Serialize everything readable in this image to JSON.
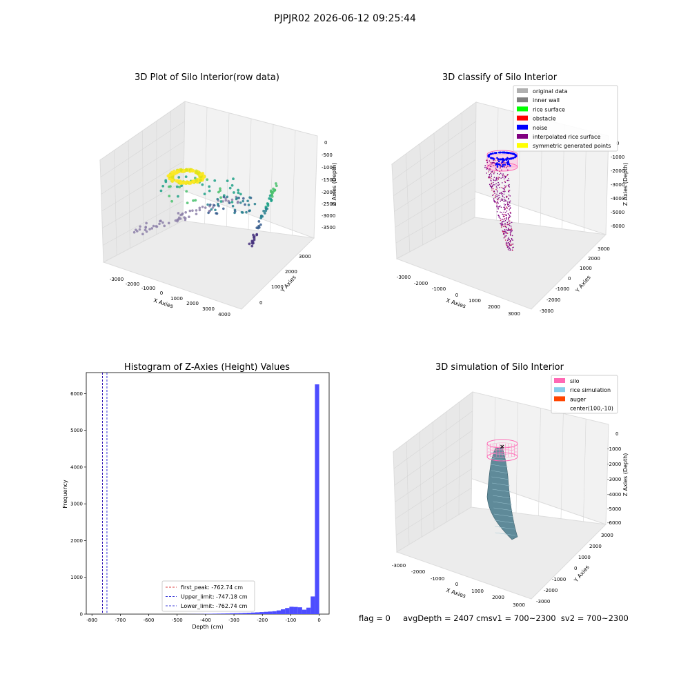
{
  "suptitle": "PJPJR02 2026-06-12 09:25:44",
  "chart_data": [
    {
      "type": "scatter",
      "title": "3D Plot of Silo Interior(row data)",
      "xlabel": "X Axies",
      "ylabel": "Y Axies",
      "zlabel": "Z Axies (Depth)",
      "xticks": [
        "-3000",
        "-2000",
        "-1000",
        "0",
        "1000",
        "2000",
        "3000",
        "4000"
      ],
      "yticks": [
        "0",
        "1000",
        "2000",
        "3000"
      ],
      "zticks": [
        "0",
        "-500",
        "-1000",
        "-1500",
        "-2000",
        "-2500",
        "-3000",
        "-3500"
      ],
      "xlim": [
        -3500,
        4500
      ],
      "ylim": [
        -500,
        3500
      ],
      "zlim": [
        -3800,
        100
      ],
      "colormap": "viridis (depth)",
      "grid": true
    },
    {
      "type": "scatter",
      "title": "3D classify of Silo Interior",
      "xlabel": "X Axies",
      "ylabel": "Y Axies",
      "zlabel": "Z Axies (Depth)",
      "xticks": [
        "-3000",
        "-2000",
        "-1000",
        "0",
        "1000",
        "2000",
        "3000"
      ],
      "yticks": [
        "-3000",
        "-2000",
        "-1000",
        "0",
        "1000",
        "2000",
        "3000"
      ],
      "zticks": [
        "0",
        "-1000",
        "-2000",
        "-3000",
        "-4000",
        "-5000",
        "-6000"
      ],
      "legend": [
        {
          "label": "original data",
          "color": "#b0b0b0"
        },
        {
          "label": "inner wall",
          "color": "#808080"
        },
        {
          "label": "rice surface",
          "color": "#00ff00"
        },
        {
          "label": "obstacle",
          "color": "#ff0000"
        },
        {
          "label": "noise",
          "color": "#0000ff"
        },
        {
          "label": "interpolated rice surface",
          "color": "#800080"
        },
        {
          "label": "symmetric generated points",
          "color": "#ffff00"
        }
      ],
      "legend_position": "top-right",
      "grid": true
    },
    {
      "type": "bar",
      "title": "Histogram of Z-Axies (Height) Values",
      "xlabel": "Depth (cm)",
      "ylabel": "Frequency",
      "xlim": [
        -820,
        35
      ],
      "ylim": [
        0,
        6570
      ],
      "xticks": [
        "-800",
        "-700",
        "-600",
        "-500",
        "-400",
        "-300",
        "-200",
        "-100",
        "0"
      ],
      "yticks": [
        "0",
        "1000",
        "2000",
        "3000",
        "4000",
        "5000",
        "6000"
      ],
      "bin_width": 15,
      "bins": [
        {
          "x0": -465,
          "v": 2
        },
        {
          "x0": -450,
          "v": 3
        },
        {
          "x0": -435,
          "v": 4
        },
        {
          "x0": -420,
          "v": 5
        },
        {
          "x0": -405,
          "v": 8
        },
        {
          "x0": -390,
          "v": 10
        },
        {
          "x0": -375,
          "v": 12
        },
        {
          "x0": -360,
          "v": 14
        },
        {
          "x0": -345,
          "v": 16
        },
        {
          "x0": -330,
          "v": 18
        },
        {
          "x0": -315,
          "v": 22
        },
        {
          "x0": -300,
          "v": 25
        },
        {
          "x0": -285,
          "v": 28
        },
        {
          "x0": -270,
          "v": 32
        },
        {
          "x0": -255,
          "v": 36
        },
        {
          "x0": -240,
          "v": 42
        },
        {
          "x0": -225,
          "v": 48
        },
        {
          "x0": -210,
          "v": 55
        },
        {
          "x0": -195,
          "v": 62
        },
        {
          "x0": -180,
          "v": 70
        },
        {
          "x0": -165,
          "v": 78
        },
        {
          "x0": -150,
          "v": 100
        },
        {
          "x0": -135,
          "v": 130
        },
        {
          "x0": -120,
          "v": 165
        },
        {
          "x0": -105,
          "v": 200
        },
        {
          "x0": -90,
          "v": 195
        },
        {
          "x0": -75,
          "v": 185
        },
        {
          "x0": -60,
          "v": 120
        },
        {
          "x0": -45,
          "v": 175
        },
        {
          "x0": -30,
          "v": 480
        },
        {
          "x0": -15,
          "v": 6250
        }
      ],
      "bar_color": "#4d4dff",
      "vlines": [
        {
          "label": "first_peak: -762.74 cm",
          "x": -762.74,
          "color": "#cc0000"
        },
        {
          "label": "Upper_limit: -747.18 cm",
          "x": -747.18,
          "color": "#0000cc"
        },
        {
          "label": "Lower_limit: -762.74 cm",
          "x": -762.74,
          "color": "#0000cc"
        }
      ],
      "legend_position": "bottom-center"
    },
    {
      "type": "surface",
      "title": "3D simulation of Silo Interior",
      "xlabel": "X Axies",
      "ylabel": "Y Axies",
      "zlabel": "Z Axies (Depth)",
      "xticks": [
        "-3000",
        "-2000",
        "-1000",
        "0",
        "1000",
        "2000",
        "3000"
      ],
      "yticks": [
        "-3000",
        "-2000",
        "-1000",
        "0",
        "1000",
        "2000",
        "3000"
      ],
      "zticks": [
        "0",
        "-1000",
        "-2000",
        "-3000",
        "-4000",
        "-5000",
        "-6000"
      ],
      "legend": [
        {
          "label": "silo",
          "color": "#ff69b4"
        },
        {
          "label": "rice simulation",
          "color": "#87ceeb"
        },
        {
          "label": "auger",
          "color": "#ff4500"
        },
        {
          "label": "center(100,-10)",
          "color": "none"
        }
      ],
      "legend_position": "top-right",
      "grid": true
    }
  ],
  "status_text": "flag = 0     avgDepth = 2407 cmsv1 = 700~2300  sv2 = 700~2300"
}
